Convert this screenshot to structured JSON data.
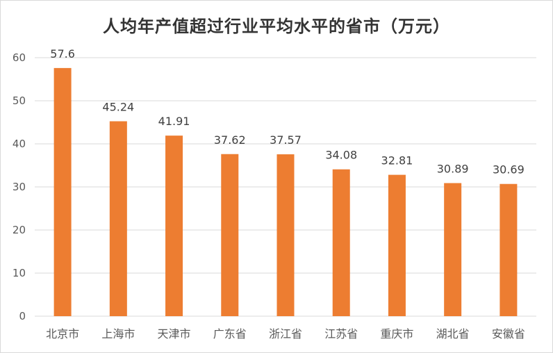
{
  "chart_data": {
    "type": "bar",
    "title": "人均年产值超过行业平均水平的省市（万元）",
    "categories": [
      "北京市",
      "上海市",
      "天津市",
      "广东省",
      "浙江省",
      "江苏省",
      "重庆市",
      "湖北省",
      "安徽省"
    ],
    "values": [
      57.6,
      45.24,
      41.91,
      37.62,
      37.57,
      34.08,
      32.81,
      30.89,
      30.69
    ],
    "data_labels": [
      "57.6",
      "45.24",
      "41.91",
      "37.62",
      "37.57",
      "34.08",
      "32.81",
      "30.89",
      "30.69"
    ],
    "ylim": [
      0,
      60
    ],
    "yticks": [
      "0",
      "10",
      "20",
      "30",
      "40",
      "50",
      "60"
    ],
    "grid": true,
    "legend": "none",
    "bar_color": "#ED7D31",
    "grid_color": "#D9D9D9"
  }
}
